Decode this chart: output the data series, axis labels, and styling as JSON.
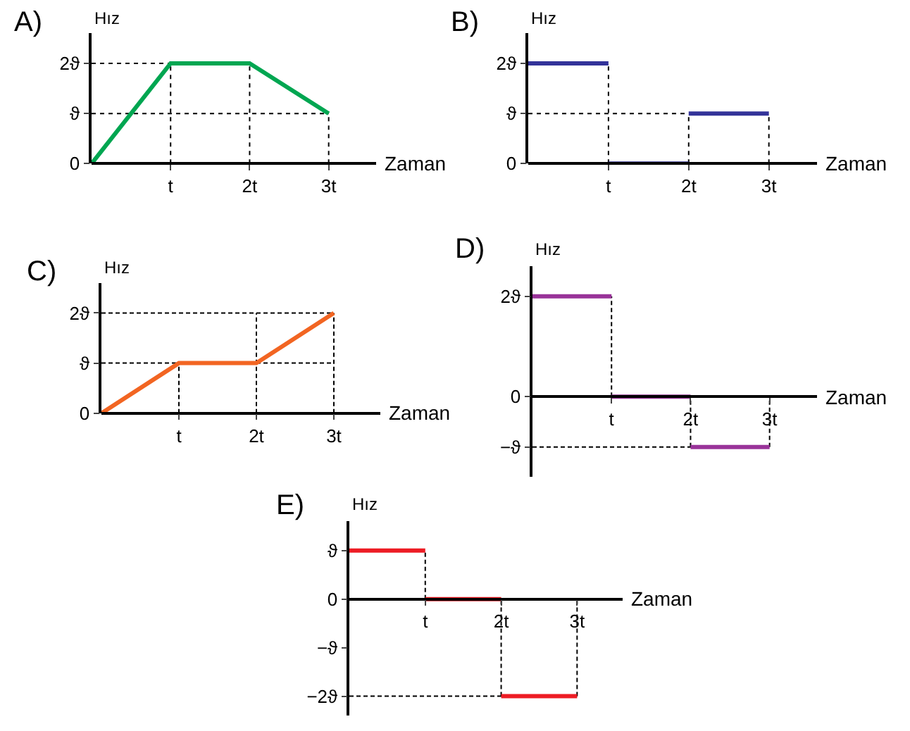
{
  "chart_data": [
    {
      "type": "line",
      "title": "A)",
      "xlabel": "Zaman",
      "ylabel": "Hız",
      "xlim": [
        0,
        3.6
      ],
      "ylim": [
        0,
        2.6
      ],
      "xticks": [
        {
          "value": 1,
          "label": "t"
        },
        {
          "value": 2,
          "label": "2t"
        },
        {
          "value": 3,
          "label": "3t"
        }
      ],
      "yticks": [
        0,
        {
          "value": 1,
          "label": "ϑ"
        },
        {
          "value": 2,
          "label": "2ϑ"
        }
      ],
      "series": [
        {
          "color": "#000000",
          "line_style": "dotted",
          "x": [
            1,
            1
          ],
          "values": [
            0,
            2
          ]
        },
        {
          "color": "#000000",
          "line_style": "dotted",
          "x": [
            2,
            2
          ],
          "values": [
            0,
            2
          ]
        },
        {
          "color": "#000000",
          "line_style": "dotted",
          "x": [
            3,
            3
          ],
          "values": [
            0,
            1
          ]
        },
        {
          "color": "#000000",
          "line_style": "dotted",
          "x": [
            0,
            1
          ],
          "values": [
            2,
            2
          ]
        },
        {
          "color": "#000000",
          "line_style": "dotted",
          "x": [
            0,
            3
          ],
          "values": [
            1,
            1
          ]
        },
        {
          "color": "#00a651",
          "line_style": "solid",
          "x": [
            0,
            1,
            2,
            3
          ],
          "values": [
            0,
            2,
            2,
            1
          ]
        }
      ]
    },
    {
      "type": "line",
      "title": "B)",
      "xlabel": "Zaman",
      "ylabel": "Hız",
      "xlim": [
        0,
        3.6
      ],
      "ylim": [
        0,
        2.6
      ],
      "xticks": [
        {
          "value": 1,
          "label": "t"
        },
        {
          "value": 2,
          "label": "2t"
        },
        {
          "value": 3,
          "label": "3t"
        }
      ],
      "yticks": [
        0,
        {
          "value": 1,
          "label": "ϑ"
        },
        {
          "value": 2,
          "label": "2ϑ"
        }
      ],
      "series": [
        {
          "color": "#000000",
          "line_style": "dotted",
          "x": [
            1,
            1
          ],
          "values": [
            0,
            2
          ]
        },
        {
          "color": "#000000",
          "line_style": "dotted",
          "x": [
            2,
            2
          ],
          "values": [
            0,
            1
          ]
        },
        {
          "color": "#000000",
          "line_style": "dotted",
          "x": [
            3,
            3
          ],
          "values": [
            0,
            1
          ]
        },
        {
          "color": "#000000",
          "line_style": "dotted",
          "x": [
            0,
            2
          ],
          "values": [
            1,
            1
          ]
        },
        {
          "color": "#333399",
          "line_style": "solid",
          "x": [
            0,
            1,
            null,
            1,
            2,
            null,
            2,
            3
          ],
          "values": [
            2,
            2,
            null,
            0,
            0,
            null,
            1,
            1
          ]
        }
      ]
    },
    {
      "type": "line",
      "title": "C)",
      "xlabel": "Zaman",
      "ylabel": "Hız",
      "xlim": [
        0,
        3.6
      ],
      "ylim": [
        0,
        2.6
      ],
      "xticks": [
        {
          "value": 1,
          "label": "t"
        },
        {
          "value": 2,
          "label": "2t"
        },
        {
          "value": 3,
          "label": "3t"
        }
      ],
      "yticks": [
        0,
        {
          "value": 1,
          "label": "ϑ"
        },
        {
          "value": 2,
          "label": "2ϑ"
        }
      ],
      "series": [
        {
          "color": "#000000",
          "line_style": "dashed",
          "x": [
            0,
            3
          ],
          "values": [
            2,
            2
          ]
        },
        {
          "color": "#000000",
          "line_style": "dashed",
          "x": [
            0,
            3
          ],
          "values": [
            1,
            1
          ]
        },
        {
          "color": "#000000",
          "line_style": "dashed",
          "x": [
            1,
            1
          ],
          "values": [
            0,
            1
          ]
        },
        {
          "color": "#000000",
          "line_style": "dashed",
          "x": [
            2,
            2
          ],
          "values": [
            0,
            2
          ]
        },
        {
          "color": "#000000",
          "line_style": "dashed",
          "x": [
            3,
            3
          ],
          "values": [
            0,
            2
          ]
        },
        {
          "color": "#f26522",
          "line_style": "solid",
          "x": [
            0,
            1,
            2,
            3
          ],
          "values": [
            0,
            1,
            1,
            2
          ]
        }
      ]
    },
    {
      "type": "line",
      "title": "D)",
      "xlabel": "Zaman",
      "ylabel": "Hız",
      "xlim": [
        0,
        3.6
      ],
      "ylim": [
        -1.6,
        2.6
      ],
      "xticks": [
        {
          "value": 1,
          "label": "t"
        },
        {
          "value": 2,
          "label": "2t"
        },
        {
          "value": 3,
          "label": "3t"
        }
      ],
      "yticks": [
        {
          "value": -1,
          "label": "−ϑ"
        },
        0,
        {
          "value": 2,
          "label": "2ϑ"
        }
      ],
      "series": [
        {
          "color": "#000000",
          "line_style": "dashed",
          "x": [
            1,
            1
          ],
          "values": [
            0,
            2
          ]
        },
        {
          "color": "#000000",
          "line_style": "dashed",
          "x": [
            0,
            3
          ],
          "values": [
            -1,
            -1
          ]
        },
        {
          "color": "#000000",
          "line_style": "dashed",
          "x": [
            2,
            2
          ],
          "values": [
            -1,
            0
          ]
        },
        {
          "color": "#000000",
          "line_style": "dashed",
          "x": [
            3,
            3
          ],
          "values": [
            -1,
            0
          ]
        },
        {
          "color": "#993399",
          "line_style": "solid",
          "x": [
            0,
            1,
            null,
            1,
            2,
            null,
            2,
            3
          ],
          "values": [
            2,
            2,
            null,
            0,
            0,
            null,
            -1,
            -1
          ]
        }
      ]
    },
    {
      "type": "line",
      "title": "E)",
      "xlabel": "Zaman",
      "ylabel": "Hız",
      "xlim": [
        0,
        3.6
      ],
      "ylim": [
        -2.4,
        1.6
      ],
      "xticks": [
        {
          "value": 1,
          "label": "t"
        },
        {
          "value": 2,
          "label": "2t"
        },
        {
          "value": 3,
          "label": "3t"
        }
      ],
      "yticks": [
        {
          "value": -2,
          "label": "−2ϑ"
        },
        {
          "value": -1,
          "label": "−ϑ"
        },
        0,
        {
          "value": 1,
          "label": "ϑ"
        }
      ],
      "series": [
        {
          "color": "#000000",
          "line_style": "dashed",
          "x": [
            1,
            1
          ],
          "values": [
            0,
            1
          ]
        },
        {
          "color": "#000000",
          "line_style": "dashed",
          "x": [
            2,
            2
          ],
          "values": [
            -2,
            0
          ]
        },
        {
          "color": "#000000",
          "line_style": "dashed",
          "x": [
            0,
            3
          ],
          "values": [
            -2,
            -2
          ]
        },
        {
          "color": "#000000",
          "line_style": "dashed",
          "x": [
            3,
            3
          ],
          "values": [
            -2,
            0
          ]
        },
        {
          "color": "#ed1c24",
          "line_style": "solid",
          "x": [
            0,
            1,
            null,
            1,
            2,
            null,
            2,
            3
          ],
          "values": [
            1,
            1,
            null,
            0,
            0,
            null,
            -2,
            -2
          ]
        }
      ]
    }
  ]
}
